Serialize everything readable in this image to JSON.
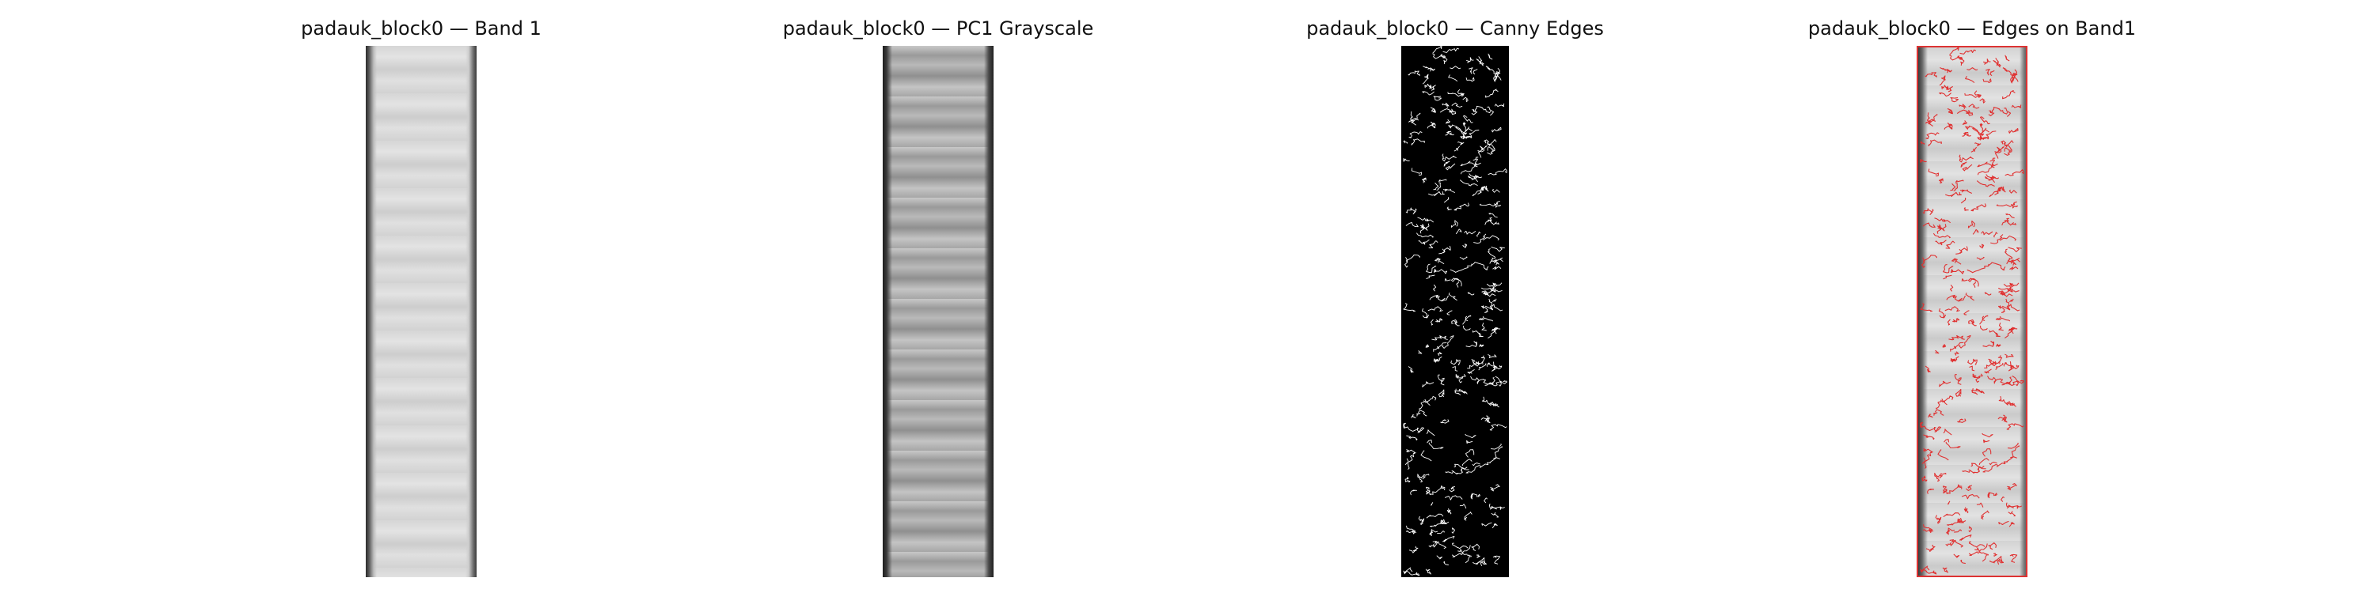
{
  "panels": [
    {
      "title": "padauk_block0 — Band 1"
    },
    {
      "title": "padauk_block0 — PC1 Grayscale"
    },
    {
      "title": "padauk_block0 — Canny Edges"
    },
    {
      "title": "padauk_block0 — Edges on Band1"
    }
  ],
  "colors": {
    "edge_white": "#ffffff",
    "edge_red": "#e03030",
    "canny_background": "#000000"
  }
}
